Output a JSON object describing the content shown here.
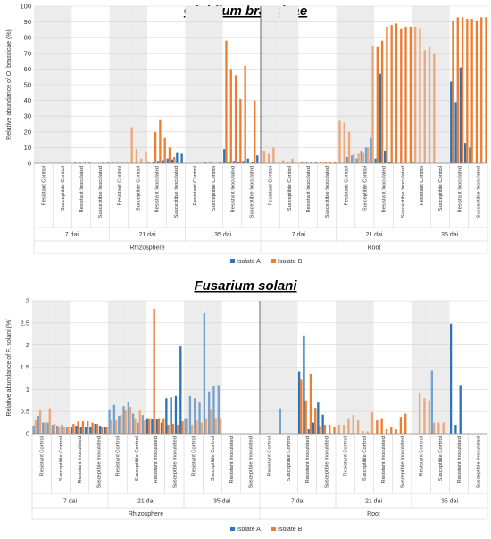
{
  "chart_data": [
    {
      "type": "bar",
      "title": "Olpidium brassicae",
      "ylabel": "Relative abundance of O. brassicae (%)",
      "ylim": [
        0,
        100
      ],
      "yticks": [
        0,
        10,
        20,
        30,
        40,
        50,
        60,
        70,
        80,
        90,
        100
      ],
      "grid": true,
      "legend_position": "bottom-center",
      "groups": [
        "Resistant Control",
        "Susceptible Control",
        "Resistant Inoculated",
        "Susceptible Inoculated"
      ],
      "timepoints": [
        "7 dai",
        "21 dai",
        "35 dai"
      ],
      "tissues": [
        "Rhizosphere",
        "Root"
      ],
      "series": [
        {
          "name": "Isolate A",
          "color": "#2e75b6",
          "values": [
            [
              [
                0,
                0,
                0,
                0
              ],
              [
                0,
                0,
                0,
                0
              ],
              [
                0,
                0,
                0,
                0
              ],
              [
                0,
                0,
                0,
                0
              ],
              [
                0,
                0,
                0,
                0
              ],
              [
                0,
                0,
                0,
                0
              ],
              [
                0.5,
                1,
                1.5,
                2
              ],
              [
                3,
                2.5,
                7,
                6
              ],
              [
                0,
                0,
                0,
                0
              ],
              [
                1,
                0.5,
                0,
                1
              ],
              [
                9,
                1,
                1.5,
                1
              ],
              [
                1.5,
                3,
                1,
                5
              ]
            ],
            [
              [
                0,
                0,
                0,
                0
              ],
              [
                0,
                0,
                0,
                0
              ],
              [
                0,
                0,
                0,
                0
              ],
              [
                0,
                0,
                0,
                0
              ],
              [
                0,
                0,
                4,
                5
              ],
              [
                3,
                8,
                10,
                16
              ],
              [
                3,
                57,
                8,
                1
              ],
              [
                0,
                0,
                0,
                0
              ],
              [
                1,
                0,
                0,
                0
              ],
              [
                0,
                0,
                0,
                0
              ],
              [
                52,
                39,
                61,
                13
              ],
              [
                10,
                0,
                0,
                0
              ]
            ]
          ]
        },
        {
          "name": "Isolate B",
          "color": "#ed7d31",
          "values": [
            [
              [
                0,
                0,
                0,
                0
              ],
              [
                0,
                0,
                0,
                0
              ],
              [
                0.5,
                0.5,
                0.5,
                0.5
              ],
              [
                0,
                0,
                0.5,
                0.5
              ],
              [
                1,
                0.5,
                1,
                1
              ],
              [
                23,
                9,
                3,
                7.5
              ],
              [
                0,
                20,
                28,
                16
              ],
              [
                10,
                4,
                0,
                0
              ],
              [
                0,
                0,
                0,
                0
              ],
              [
                0,
                0,
                0,
                0
              ],
              [
                78,
                60,
                56,
                41
              ],
              [
                62,
                0,
                40,
                0
              ]
            ],
            [
              [
                8,
                6,
                10,
                0
              ],
              [
                2,
                1,
                3,
                0
              ],
              [
                1,
                1,
                1,
                1
              ],
              [
                1,
                1,
                1,
                1
              ],
              [
                27,
                26,
                20,
                6
              ],
              [
                6,
                7,
                10,
                75
              ],
              [
                74,
                78,
                87,
                88
              ],
              [
                89,
                86,
                87,
                87
              ],
              [
                87,
                86,
                72,
                74
              ],
              [
                70,
                0,
                0,
                0
              ],
              [
                91,
                93,
                93,
                92
              ],
              [
                92,
                91,
                93,
                93
              ]
            ]
          ]
        }
      ]
    },
    {
      "type": "bar",
      "title": "Fusarium solani",
      "ylabel": "Relative abundance of F. solani (%)",
      "ylim": [
        0,
        3
      ],
      "yticks": [
        0,
        0.5,
        1,
        1.5,
        2,
        2.5,
        3
      ],
      "grid": true,
      "legend_position": "bottom-center",
      "groups": [
        "Resistant Control",
        "Susceptible Control",
        "Resistant Inoculated",
        "Susceptible Inoculated"
      ],
      "timepoints": [
        "7 dai",
        "21 dai",
        "35 dai"
      ],
      "tissues": [
        "Rhizosphere",
        "Root"
      ],
      "series": [
        {
          "name": "Isolate A",
          "color": "#2e75b6",
          "values": [
            [
              [
                0.18,
                0.4,
                0.25,
                0.25
              ],
              [
                0.2,
                0.18,
                0.2,
                0.15
              ],
              [
                0.15,
                0.18,
                0.15,
                0.15
              ],
              [
                0.15,
                0.22,
                0.18,
                0.15
              ],
              [
                0.55,
                0.65,
                0.4,
                0.62
              ],
              [
                0.72,
                0.45,
                0.25,
                0.42
              ],
              [
                0.35,
                0.33,
                0.32,
                0.25
              ],
              [
                0.8,
                0.82,
                0.85,
                1.97
              ],
              [
                0.35,
                0.85,
                0.8,
                0.7
              ],
              [
                2.72,
                0.95,
                1.07,
                1.1
              ],
              [
                0,
                0,
                0,
                0
              ],
              [
                0,
                0,
                0,
                0
              ]
            ],
            [
              [
                0,
                0,
                0,
                0
              ],
              [
                0.57,
                0,
                0,
                0
              ],
              [
                1.4,
                2.22,
                0.1,
                0.25
              ],
              [
                0.7,
                0.43,
                0,
                0
              ],
              [
                0,
                0,
                0,
                0
              ],
              [
                0,
                0,
                0,
                0
              ],
              [
                0,
                0,
                0,
                0
              ],
              [
                0,
                0,
                0,
                0
              ],
              [
                0,
                0,
                0,
                0
              ],
              [
                1.42,
                0,
                0,
                0
              ],
              [
                2.48,
                0.2,
                1.1,
                0
              ],
              [
                0,
                0,
                0,
                0
              ]
            ]
          ]
        },
        {
          "name": "Isolate B",
          "color": "#ed7d31",
          "values": [
            [
              [
                0.3,
                0.53,
                0.25,
                0.57
              ],
              [
                0.22,
                0.16,
                0.15,
                0.15
              ],
              [
                0.22,
                0.28,
                0.28,
                0.28
              ],
              [
                0.25,
                0.22,
                0.15,
                0.15
              ],
              [
                0.3,
                0.3,
                0.42,
                0.52
              ],
              [
                0.6,
                0.35,
                0.52,
                0.3
              ],
              [
                0.35,
                2.82,
                0.35,
                0.35
              ],
              [
                0.2,
                0.22,
                0.2,
                0.28
              ],
              [
                0.35,
                0.2,
                0.3,
                0.25
              ],
              [
                0.35,
                0.55,
                0.35,
                0.35
              ],
              [
                0,
                0,
                0,
                0
              ],
              [
                0,
                0,
                0,
                0
              ]
            ],
            [
              [
                0,
                0,
                0,
                0
              ],
              [
                0,
                0,
                0,
                0
              ],
              [
                1.22,
                0.75,
                1.35,
                0.58
              ],
              [
                0.18,
                0.2,
                0.2,
                0.15
              ],
              [
                0.2,
                0.2,
                0.35,
                0.42
              ],
              [
                0.3,
                0.06,
                0.05,
                0.48
              ],
              [
                0.3,
                0.35,
                0.1,
                0.15
              ],
              [
                0.1,
                0.38,
                0.45,
                0
              ],
              [
                0,
                0.93,
                0.8,
                0.75
              ],
              [
                0.25,
                0.25,
                0.25,
                0
              ],
              [
                0,
                0,
                0,
                0
              ],
              [
                0,
                0,
                0,
                0
              ]
            ]
          ]
        }
      ]
    }
  ]
}
